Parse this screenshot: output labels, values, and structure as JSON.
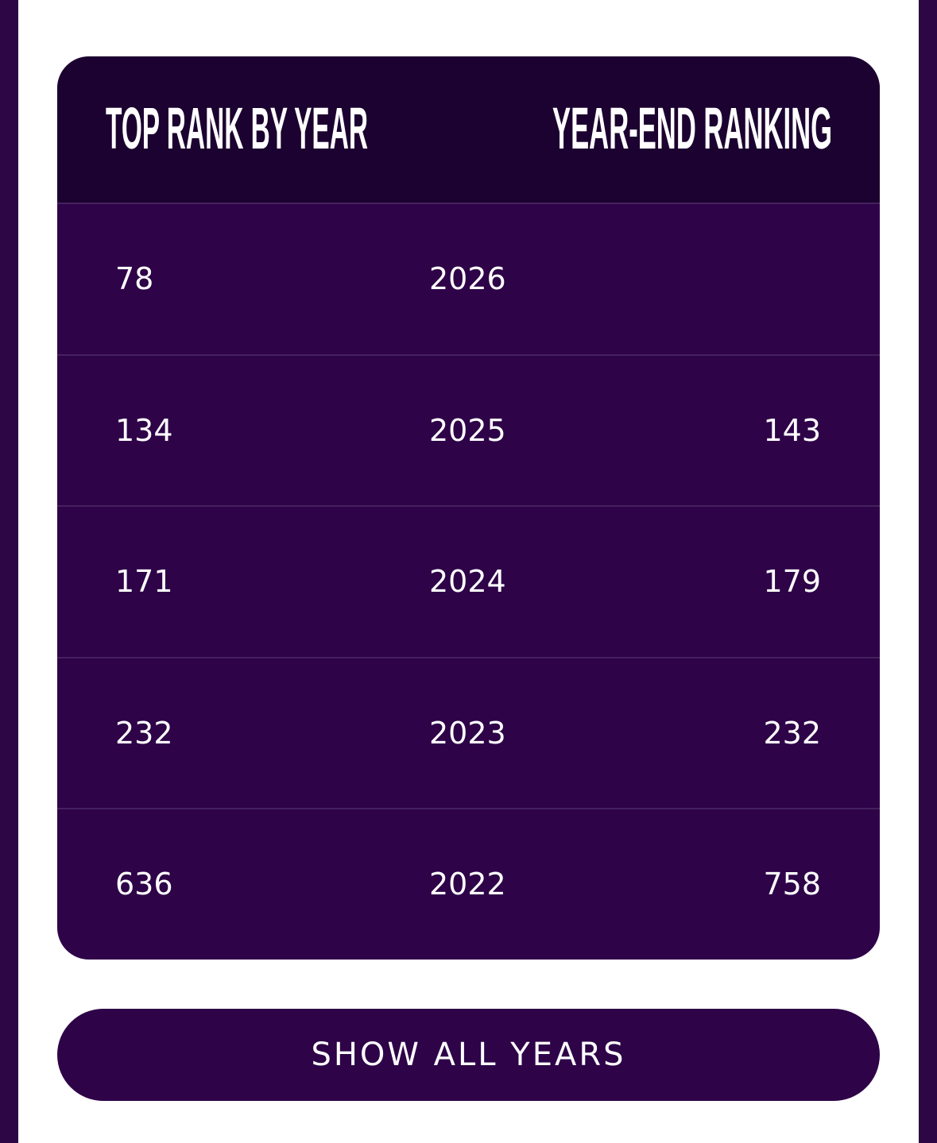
{
  "table": {
    "headers": [
      "TOP RANK BY YEAR",
      "YEAR-END RANKING"
    ],
    "rows": [
      [
        "78",
        "2026",
        null
      ],
      [
        "134",
        "2025",
        "143"
      ],
      [
        "171",
        "2024",
        "179"
      ],
      [
        "232",
        "2023",
        "232"
      ],
      [
        "636",
        "2022",
        "758"
      ]
    ]
  },
  "button": {
    "label": "SHOW ALL YEARS"
  }
}
